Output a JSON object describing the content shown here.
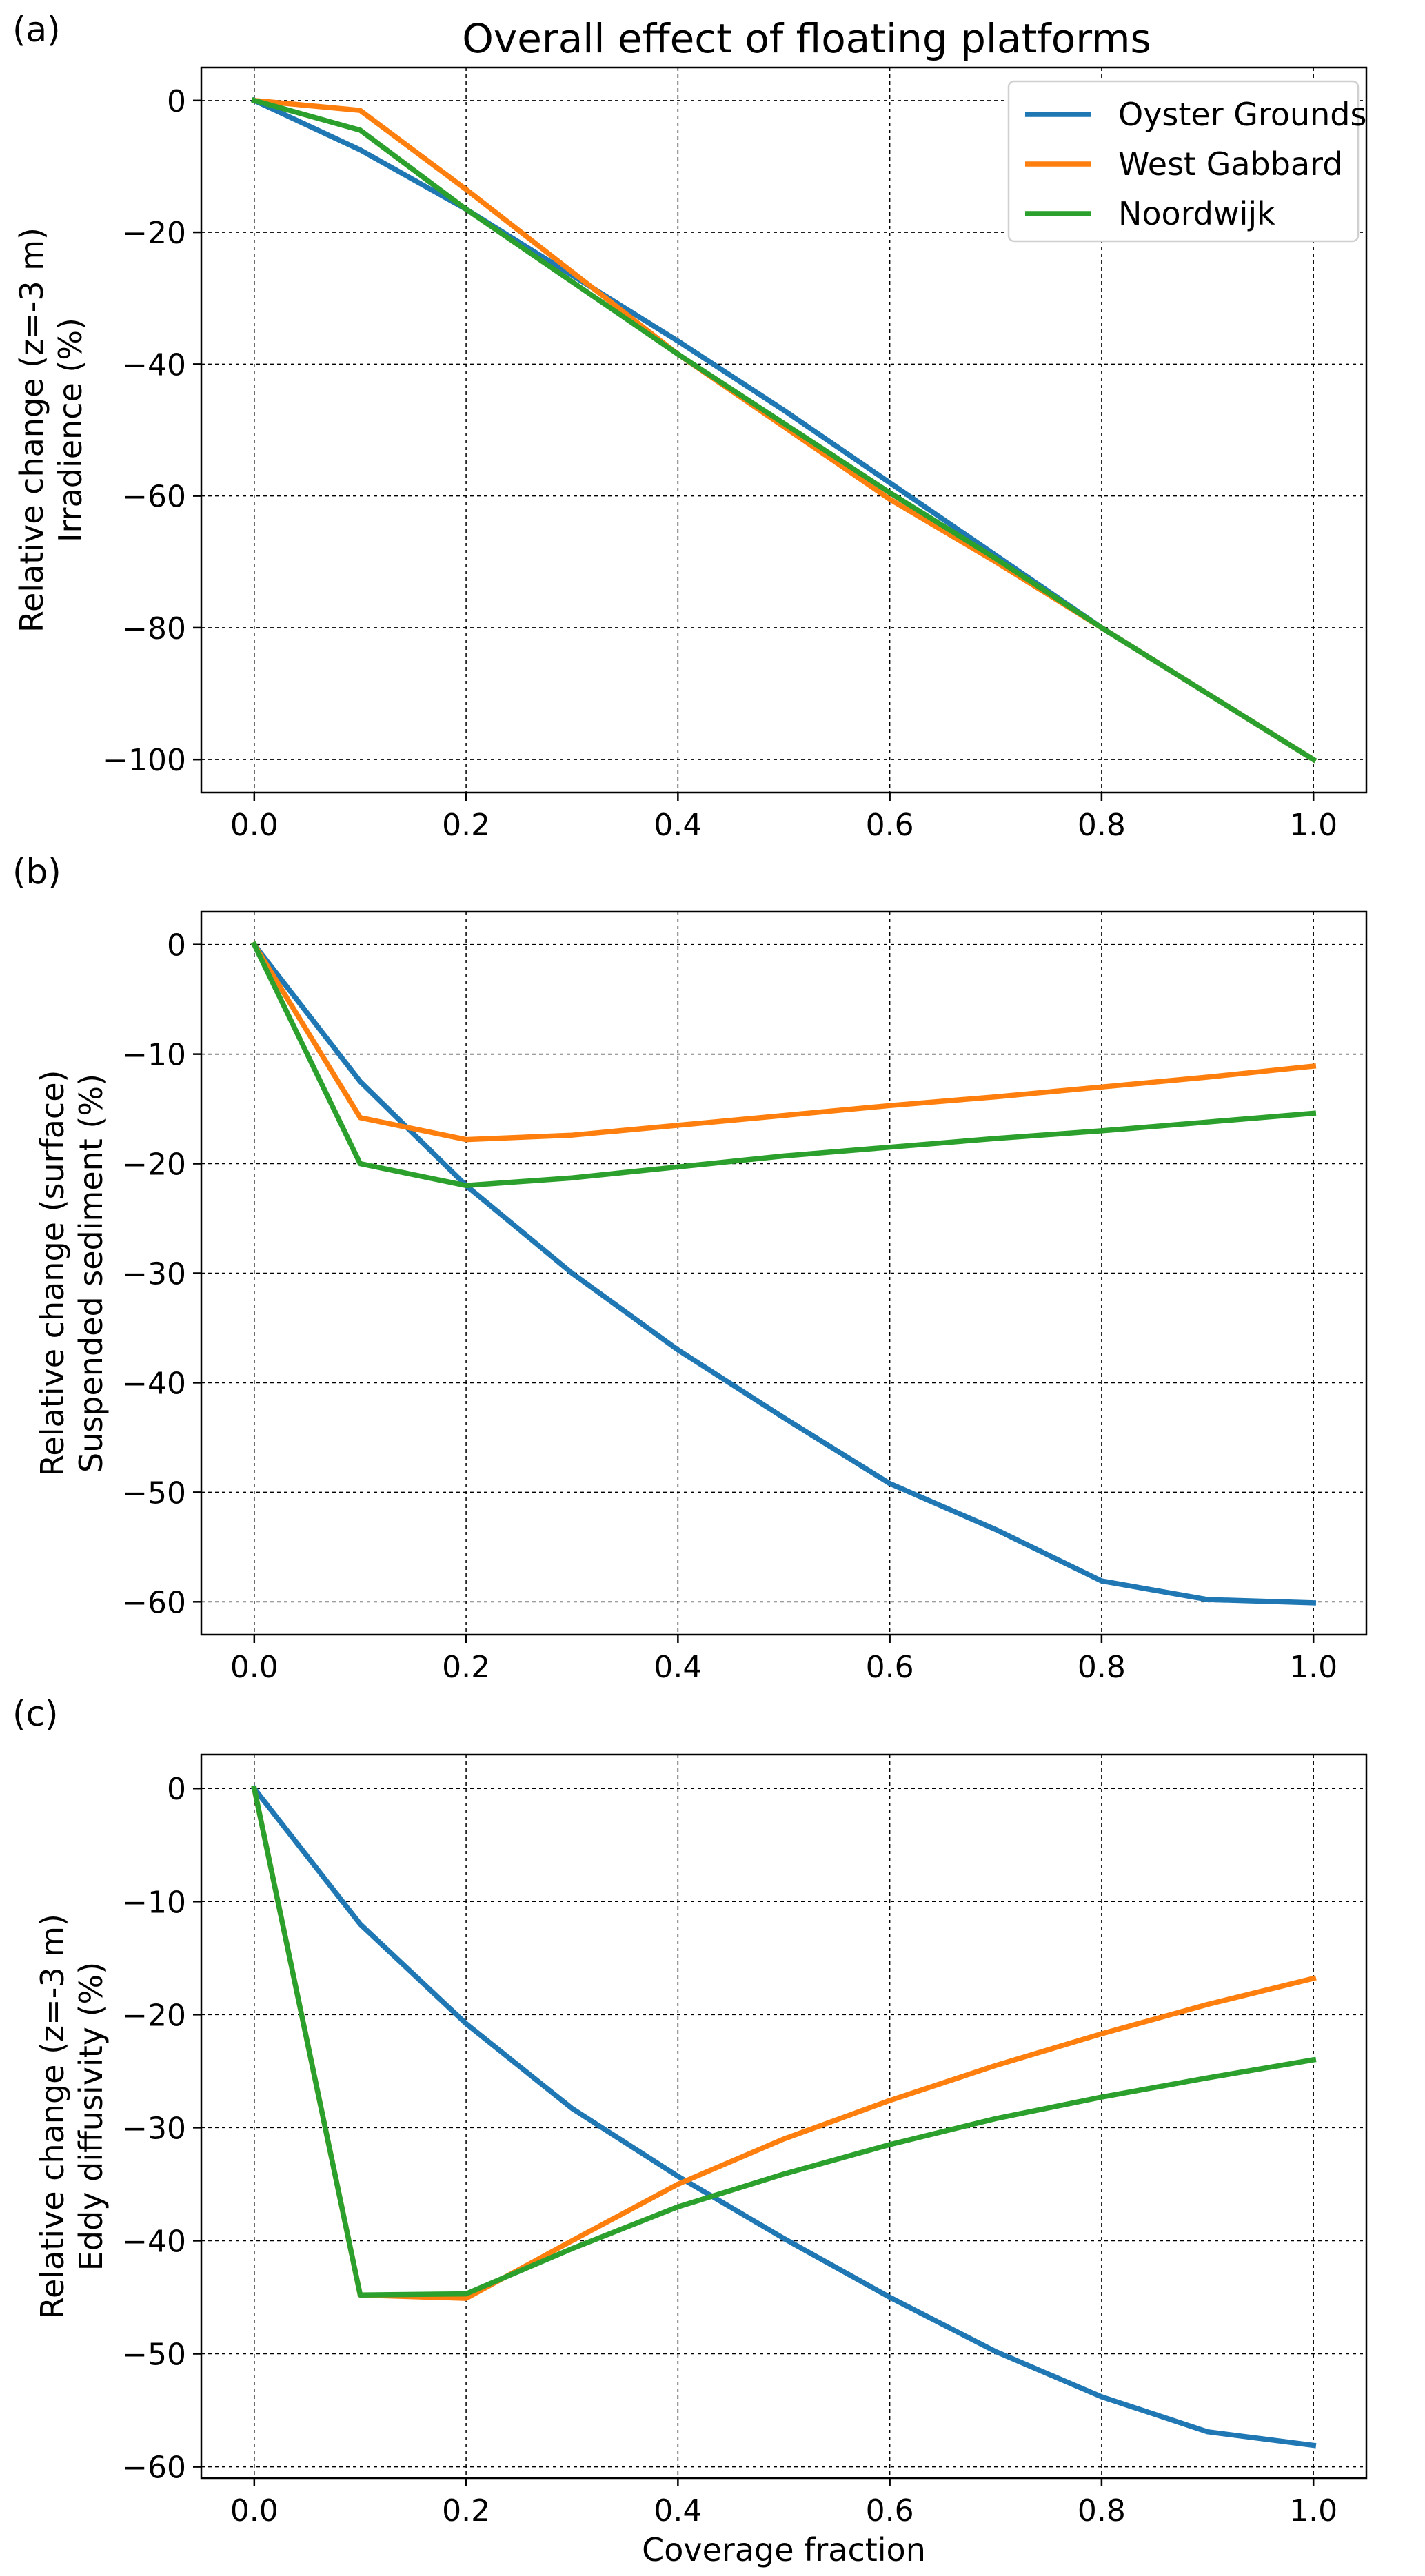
{
  "figure_title": "Overall effect of floating platforms",
  "legend": [
    {
      "label": "Oyster Grounds",
      "color": "#1f77b4"
    },
    {
      "label": "West Gabbard",
      "color": "#ff7f0e"
    },
    {
      "label": "Noordwijk",
      "color": "#2ca02c"
    }
  ],
  "chart_data": [
    {
      "type": "line",
      "panel_label": "(a)",
      "title": "Overall effect of floating platforms",
      "ylabel": [
        "Relative change (z=-3 m)",
        "Irradience (%)"
      ],
      "xlabel": "",
      "xlim": [
        -0.05,
        1.05
      ],
      "ylim": [
        -105,
        5
      ],
      "xticks": [
        0.0,
        0.2,
        0.4,
        0.6,
        0.8,
        1.0
      ],
      "xtick_labels": [
        "0.0",
        "0.2",
        "0.4",
        "0.6",
        "0.8",
        "1.0"
      ],
      "yticks": [
        0,
        -20,
        -40,
        -60,
        -80,
        -100
      ],
      "ytick_labels": [
        "0",
        "−20",
        "−40",
        "−60",
        "−80",
        "−100"
      ],
      "grid": true,
      "legend_position": "top-right",
      "x": [
        0.0,
        0.1,
        0.2,
        0.3,
        0.4,
        0.5,
        0.6,
        0.7,
        0.8,
        0.9,
        1.0
      ],
      "series": [
        {
          "name": "Oyster Grounds",
          "color": "#1f77b4",
          "values": [
            0,
            -7.5,
            -16.5,
            -26.5,
            -36.5,
            -47,
            -58,
            -69,
            -80,
            -90,
            -100
          ]
        },
        {
          "name": "West Gabbard",
          "color": "#ff7f0e",
          "values": [
            0,
            -1.5,
            -13.5,
            -26,
            -38.5,
            -49.5,
            -60.5,
            -70,
            -80,
            -90,
            -100
          ]
        },
        {
          "name": "Noordwijk",
          "color": "#2ca02c",
          "values": [
            0,
            -4.5,
            -16.5,
            -27.5,
            -38.5,
            -49,
            -59.5,
            -69.5,
            -80,
            -90,
            -100
          ]
        }
      ]
    },
    {
      "type": "line",
      "panel_label": "(b)",
      "title": "",
      "ylabel": [
        "Relative change (surface)",
        "Suspended sediment (%)"
      ],
      "xlabel": "",
      "xlim": [
        -0.05,
        1.05
      ],
      "ylim": [
        -63,
        3
      ],
      "xticks": [
        0.0,
        0.2,
        0.4,
        0.6,
        0.8,
        1.0
      ],
      "xtick_labels": [
        "0.0",
        "0.2",
        "0.4",
        "0.6",
        "0.8",
        "1.0"
      ],
      "yticks": [
        0,
        -10,
        -20,
        -30,
        -40,
        -50,
        -60
      ],
      "ytick_labels": [
        "0",
        "−10",
        "−20",
        "−30",
        "−40",
        "−50",
        "−60"
      ],
      "grid": true,
      "x": [
        0.0,
        0.1,
        0.2,
        0.3,
        0.4,
        0.5,
        0.6,
        0.7,
        0.8,
        0.9,
        1.0
      ],
      "series": [
        {
          "name": "Oyster Grounds",
          "color": "#1f77b4",
          "values": [
            0,
            -12.5,
            -22,
            -30,
            -37,
            -43.2,
            -49.2,
            -53.4,
            -58.1,
            -59.8,
            -60.1
          ]
        },
        {
          "name": "West Gabbard",
          "color": "#ff7f0e",
          "values": [
            0,
            -15.8,
            -17.8,
            -17.4,
            -16.5,
            -15.6,
            -14.7,
            -13.9,
            -13,
            -12.1,
            -11.1
          ]
        },
        {
          "name": "Noordwijk",
          "color": "#2ca02c",
          "values": [
            0,
            -20,
            -22,
            -21.3,
            -20.3,
            -19.3,
            -18.5,
            -17.7,
            -17,
            -16.2,
            -15.4
          ]
        }
      ]
    },
    {
      "type": "line",
      "panel_label": "(c)",
      "title": "",
      "ylabel": [
        "Relative change (z=-3 m)",
        "Eddy diffusivity (%)"
      ],
      "xlabel": "Coverage fraction",
      "xlim": [
        -0.05,
        1.05
      ],
      "ylim": [
        -61,
        3
      ],
      "xticks": [
        0.0,
        0.2,
        0.4,
        0.6,
        0.8,
        1.0
      ],
      "xtick_labels": [
        "0.0",
        "0.2",
        "0.4",
        "0.6",
        "0.8",
        "1.0"
      ],
      "yticks": [
        0,
        -10,
        -20,
        -30,
        -40,
        -50,
        -60
      ],
      "ytick_labels": [
        "0",
        "−10",
        "−20",
        "−30",
        "−40",
        "−50",
        "−60"
      ],
      "grid": true,
      "x": [
        0.0,
        0.1,
        0.2,
        0.3,
        0.4,
        0.5,
        0.6,
        0.7,
        0.8,
        0.9,
        1.0
      ],
      "series": [
        {
          "name": "Oyster Grounds",
          "color": "#1f77b4",
          "values": [
            0,
            -12,
            -20.8,
            -28.3,
            -34.3,
            -39.8,
            -45,
            -49.8,
            -53.8,
            -56.9,
            -58.1
          ]
        },
        {
          "name": "West Gabbard",
          "color": "#ff7f0e",
          "values": [
            0,
            -44.8,
            -45.1,
            -40,
            -35,
            -31,
            -27.6,
            -24.5,
            -21.7,
            -19.1,
            -16.8
          ]
        },
        {
          "name": "Noordwijk",
          "color": "#2ca02c",
          "values": [
            0,
            -44.8,
            -44.7,
            -40.7,
            -37,
            -34.1,
            -31.5,
            -29.2,
            -27.3,
            -25.6,
            -24
          ]
        }
      ]
    }
  ]
}
